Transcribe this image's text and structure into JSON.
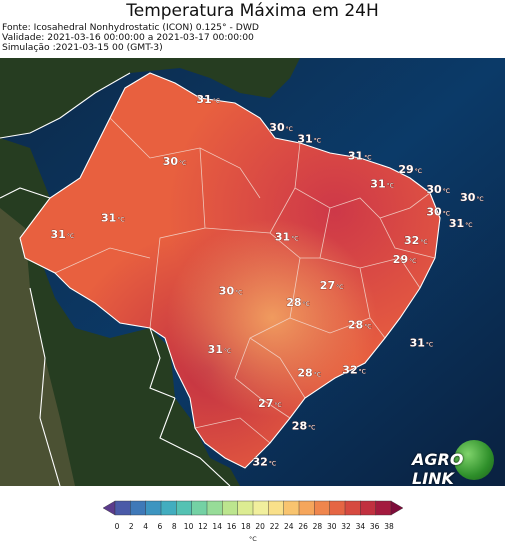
{
  "title": "Temperatura Máxima em 24H",
  "meta": {
    "source": "Fonte: Icosahedral Nonhydrostatic (ICON) 0.125° - DWD",
    "validity": "Validade: 2021-03-16 00:00:00 a 2021-03-17 00:00:00",
    "simulation": "Simulação :2021-03-15 00 (GMT-3)"
  },
  "temperature_labels": [
    {
      "value": "31",
      "unit": "°C",
      "lon": -57.5,
      "lat": 2.0
    },
    {
      "value": "30",
      "unit": "°C",
      "lon": -51.0,
      "lat": -0.5
    },
    {
      "value": "31",
      "unit": "°C",
      "lon": -48.5,
      "lat": -1.5
    },
    {
      "value": "31",
      "unit": "°C",
      "lon": -44.0,
      "lat": -3.0
    },
    {
      "value": "29",
      "unit": "°C",
      "lon": -39.5,
      "lat": -4.2
    },
    {
      "value": "30",
      "unit": "°C",
      "lon": -60.5,
      "lat": -3.5
    },
    {
      "value": "31",
      "unit": "°C",
      "lon": -42.0,
      "lat": -5.5
    },
    {
      "value": "30",
      "unit": "°C",
      "lon": -37.0,
      "lat": -6.0
    },
    {
      "value": "30",
      "unit": "°C",
      "lon": -34.0,
      "lat": -6.7
    },
    {
      "value": "30",
      "unit": "°C",
      "lon": -37.0,
      "lat": -8.0
    },
    {
      "value": "31",
      "unit": "°C",
      "lon": -35.0,
      "lat": -9.0
    },
    {
      "value": "31",
      "unit": "°C",
      "lon": -66.0,
      "lat": -8.5
    },
    {
      "value": "31",
      "unit": "°C",
      "lon": -70.5,
      "lat": -10.0
    },
    {
      "value": "31",
      "unit": "°C",
      "lon": -50.5,
      "lat": -10.2
    },
    {
      "value": "32",
      "unit": "°C",
      "lon": -39.0,
      "lat": -10.5
    },
    {
      "value": "29",
      "unit": "°C",
      "lon": -40.0,
      "lat": -12.2
    },
    {
      "value": "27",
      "unit": "°C",
      "lon": -46.5,
      "lat": -14.5
    },
    {
      "value": "30",
      "unit": "°C",
      "lon": -55.5,
      "lat": -15.0
    },
    {
      "value": "28",
      "unit": "°C",
      "lon": -49.5,
      "lat": -16.0
    },
    {
      "value": "28",
      "unit": "°C",
      "lon": -44.0,
      "lat": -18.0
    },
    {
      "value": "31",
      "unit": "°C",
      "lon": -38.5,
      "lat": -19.6
    },
    {
      "value": "31",
      "unit": "°C",
      "lon": -56.5,
      "lat": -20.2
    },
    {
      "value": "28",
      "unit": "°C",
      "lon": -48.5,
      "lat": -22.3
    },
    {
      "value": "32",
      "unit": "°C",
      "lon": -44.5,
      "lat": -22.0
    },
    {
      "value": "27",
      "unit": "°C",
      "lon": -52.0,
      "lat": -25.0
    },
    {
      "value": "28",
      "unit": "°C",
      "lon": -49.0,
      "lat": -27.0
    },
    {
      "value": "32",
      "unit": "°C",
      "lon": -52.5,
      "lat": -30.2
    }
  ],
  "logo": {
    "part1": "AGRO",
    "part2": "LINK"
  },
  "colorbar": {
    "ticks": [
      "0",
      "2",
      "4",
      "6",
      "8",
      "10",
      "12",
      "14",
      "16",
      "18",
      "20",
      "22",
      "24",
      "26",
      "28",
      "30",
      "32",
      "34",
      "36",
      "38"
    ],
    "unit": "°C",
    "colors": [
      "#5b3b8c",
      "#4a5aa8",
      "#3f79b8",
      "#3d95c0",
      "#42adbf",
      "#55c2b3",
      "#74d1a4",
      "#97dc98",
      "#bce58e",
      "#dcec92",
      "#f1ef9d",
      "#f9e08a",
      "#f8c46f",
      "#f5a65c",
      "#ef864d",
      "#e56644",
      "#d64a40",
      "#c1303f",
      "#a31a3e",
      "#7e0c3a"
    ]
  }
}
